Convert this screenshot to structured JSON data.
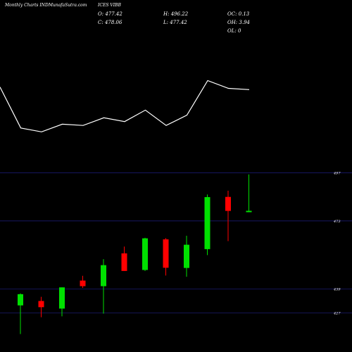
{
  "header": {
    "site": "Monthly Charts INDMunafaSutra.com",
    "symbol": "ICES VIBB",
    "open": "O: 477.42",
    "close": "C: 478.06",
    "high": "H: 496.22",
    "low": "L: 477.42",
    "oc": "OC: 0.13",
    "oh": "OH: 3.94",
    "ol": "OL: 0"
  },
  "colors": {
    "background": "#000000",
    "up": "#00e000",
    "down": "#ff0000",
    "line": "#ffffff",
    "grid": "#1a1a6e"
  },
  "chart_data": [
    {
      "type": "line",
      "x": [
        1,
        2,
        3,
        4,
        5,
        6,
        7,
        8,
        9,
        10,
        11,
        12,
        13
      ],
      "series": [
        {
          "values": [
            62,
            30,
            27,
            33,
            32,
            38,
            35,
            44,
            32,
            40,
            67,
            61,
            60
          ]
        }
      ]
    },
    {
      "type": "candlestick",
      "categories": [
        "1",
        "2",
        "3",
        "4",
        "5",
        "6",
        "7",
        "8",
        "9",
        "10",
        "11",
        "12"
      ],
      "ohlc": [
        [
          430.8,
          436.8,
          416.5,
          436.4
        ],
        [
          433.0,
          435.1,
          424.9,
          429.9
        ],
        [
          429.2,
          439.8,
          425.3,
          439.8
        ],
        [
          443.2,
          445.6,
          439.5,
          440.4
        ],
        [
          440.4,
          453.9,
          426.7,
          450.9
        ],
        [
          456.8,
          460.2,
          448.0,
          448.0
        ],
        [
          448.5,
          464.6,
          448.0,
          464.3
        ],
        [
          463.8,
          464.4,
          445.7,
          449.6
        ],
        [
          449.5,
          465.6,
          445.1,
          461.1
        ],
        [
          458.9,
          486.2,
          455.9,
          484.9
        ],
        [
          485.0,
          488.1,
          462.9,
          478.0
        ],
        [
          477.42,
          496.22,
          477.42,
          478.06
        ]
      ],
      "ticks": [
        427,
        439,
        473,
        497
      ]
    }
  ]
}
